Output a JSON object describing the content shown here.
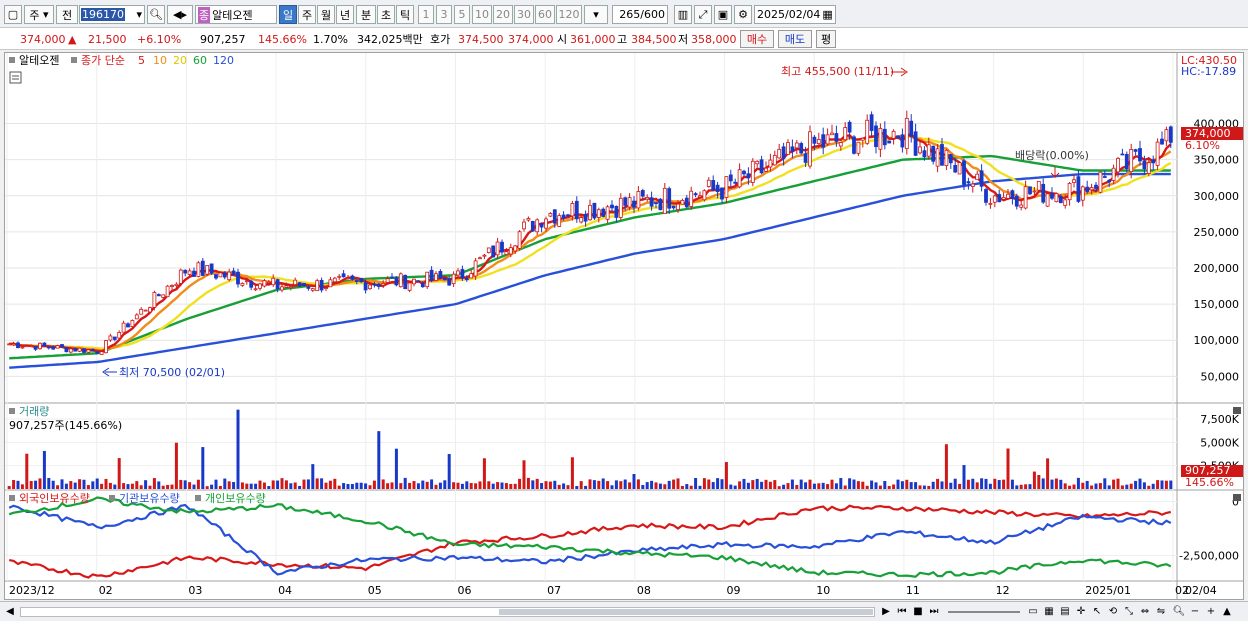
{
  "toolbar": {
    "period_label": "주",
    "prev_label": "전",
    "stock_code": "196170",
    "stock_name": "알테오젠",
    "stock_badge": "종",
    "tabs": [
      "일",
      "주",
      "월",
      "년",
      "분",
      "초",
      "틱"
    ],
    "active_tab": "일",
    "intervals": [
      "1",
      "3",
      "5",
      "10",
      "20",
      "30",
      "60",
      "120"
    ],
    "count_value": "265",
    "count_total": "/600",
    "date_value": "2025/02/04"
  },
  "pricebar": {
    "price": "374,000",
    "change_arrow": "▲",
    "change": "21,500",
    "change_pct": "+6.10%",
    "volume": "907,257",
    "volume_ratio": "145.66%",
    "turnover": "1.70%",
    "amount": "342,025백만",
    "ask_label": "호가",
    "ask1": "374,500",
    "ask2": "374,000",
    "open_label": "시",
    "open": "361,000",
    "high_label": "고",
    "high": "384,500",
    "low_label": "저",
    "low": "358,000",
    "buy_label": "매수",
    "sell_label": "매도",
    "avg_label": "평"
  },
  "price_panel": {
    "stock_name": "알테오젠",
    "ma_label": "종가 단순",
    "ma_periods": [
      "5",
      "10",
      "20",
      "60",
      "120"
    ],
    "ma_colors": [
      "#d81818",
      "#f08c18",
      "#f0e020",
      "#18a038",
      "#2850d8"
    ],
    "lc_label": "LC:430.50",
    "hc_label": "HC:-17.89",
    "max_note": "최고 455,500 (11/11)",
    "min_note": "최저 70,500 (02/01)",
    "dividend_note": "배당락(0.00%)",
    "current_price_tag": "374,000",
    "current_pct_tag": "6.10%",
    "y_ticks": [
      "400,000",
      "350,000",
      "300,000",
      "250,000",
      "200,000",
      "150,000",
      "100,000",
      "50,000"
    ]
  },
  "volume_panel": {
    "title": "거래량",
    "value_label": "907,257주(145.66%)",
    "y_ticks": [
      "7,500K",
      "5,000K",
      "2,500K"
    ],
    "current_tag": "907,257",
    "current_pct": "145.66%"
  },
  "holdings_panel": {
    "legend": [
      "외국인보유수량",
      "기관보유수량",
      "개인보유수량"
    ],
    "legend_colors": [
      "#d81818",
      "#2850d8",
      "#18a038"
    ],
    "y_ticks": [
      "0",
      "-2,500,000"
    ]
  },
  "x_axis": [
    "2023/12",
    "02",
    "03",
    "04",
    "05",
    "06",
    "07",
    "08",
    "09",
    "10",
    "11",
    "12",
    "2025/01",
    "02"
  ],
  "x_right_label": "02/04",
  "chart_data": {
    "type": "candlestick",
    "title": "알테오젠",
    "period": "일",
    "price_axis_ticks": [
      400000,
      350000,
      300000,
      250000,
      200000,
      150000,
      100000,
      50000
    ],
    "annotations": {
      "high": {
        "value": 455500,
        "date": "11/11"
      },
      "low": {
        "value": 70500,
        "date": "02/01"
      },
      "last_price": 374000,
      "last_change_pct": 6.1
    },
    "price_series_approx": {
      "months": [
        "2023/12",
        "02",
        "03",
        "04",
        "05",
        "06",
        "07",
        "08",
        "09",
        "10",
        "11",
        "12",
        "2025/01",
        "02"
      ],
      "close": [
        95000,
        85000,
        200000,
        175000,
        180000,
        185000,
        275000,
        290000,
        310000,
        370000,
        390000,
        300000,
        310000,
        374000
      ],
      "ma60": [
        75000,
        82000,
        130000,
        170000,
        185000,
        190000,
        240000,
        270000,
        290000,
        320000,
        350000,
        355000,
        335000,
        335000
      ],
      "ma120": [
        62000,
        70000,
        90000,
        110000,
        130000,
        150000,
        190000,
        220000,
        240000,
        270000,
        300000,
        320000,
        330000,
        330000
      ]
    },
    "volume_axis_ticks": [
      "7,500K",
      "5,000K",
      "2,500K"
    ],
    "volume_last": 907257,
    "volume_ratio_pct": 145.66,
    "holdings_axis_ticks": [
      0,
      -2500000
    ]
  }
}
